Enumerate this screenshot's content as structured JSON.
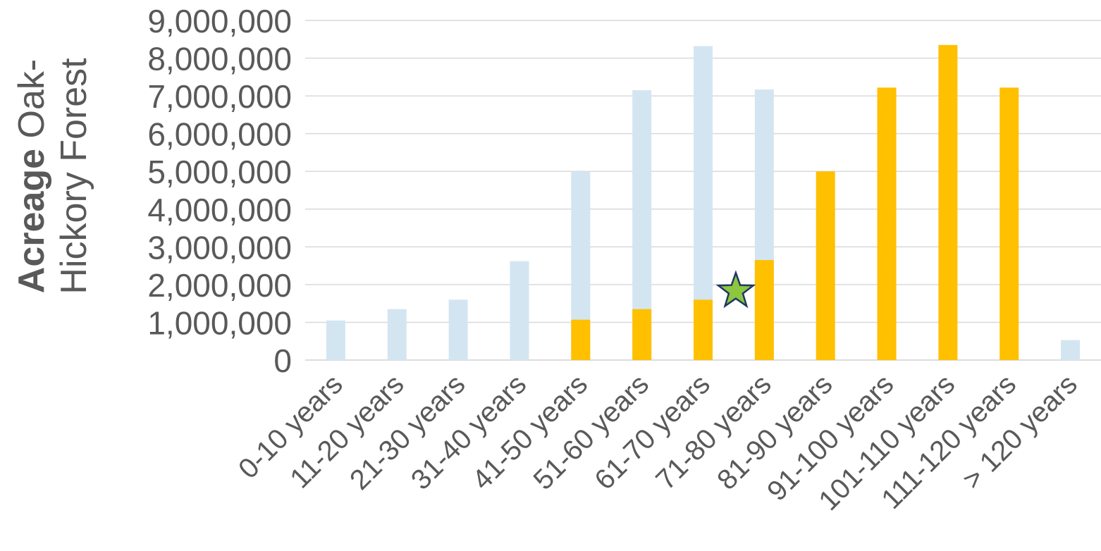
{
  "chart_data": {
    "type": "bar",
    "ylabel_bold": "Acreage",
    "ylabel_rest": " Oak-Hickory Forest",
    "ylim": [
      0,
      9000000
    ],
    "yticks": [
      "0",
      "1,000,000",
      "2,000,000",
      "3,000,000",
      "4,000,000",
      "5,000,000",
      "6,000,000",
      "7,000,000",
      "8,000,000",
      "9,000,000"
    ],
    "ytick_values": [
      0,
      1000000,
      2000000,
      3000000,
      4000000,
      5000000,
      6000000,
      7000000,
      8000000,
      9000000
    ],
    "grid": true,
    "categories": [
      "0-10 years",
      "11-20 years",
      "21-30 years",
      "31-40 years",
      "41-50 years",
      "51-60 years",
      "61-70 years",
      "71-80 years",
      "81-90 years",
      "91-100 years",
      "101-110 years",
      "111-120 years",
      "> 120 years"
    ],
    "series": [
      {
        "color": "#d4e5f2",
        "values": [
          1050000,
          1350000,
          1600000,
          2620000,
          5000000,
          7150000,
          8320000,
          7170000,
          0,
          0,
          0,
          0,
          530000
        ]
      },
      {
        "color": "#ffc000",
        "values": [
          0,
          0,
          0,
          0,
          1070000,
          1350000,
          1600000,
          2650000,
          5000000,
          7220000,
          8350000,
          7220000,
          0
        ]
      }
    ],
    "marker": {
      "shape": "star",
      "color": "#8dc63f",
      "stroke": "#1f3864",
      "x_category_between": [
        "61-70 years",
        "71-80 years"
      ],
      "y": 1900000
    }
  }
}
